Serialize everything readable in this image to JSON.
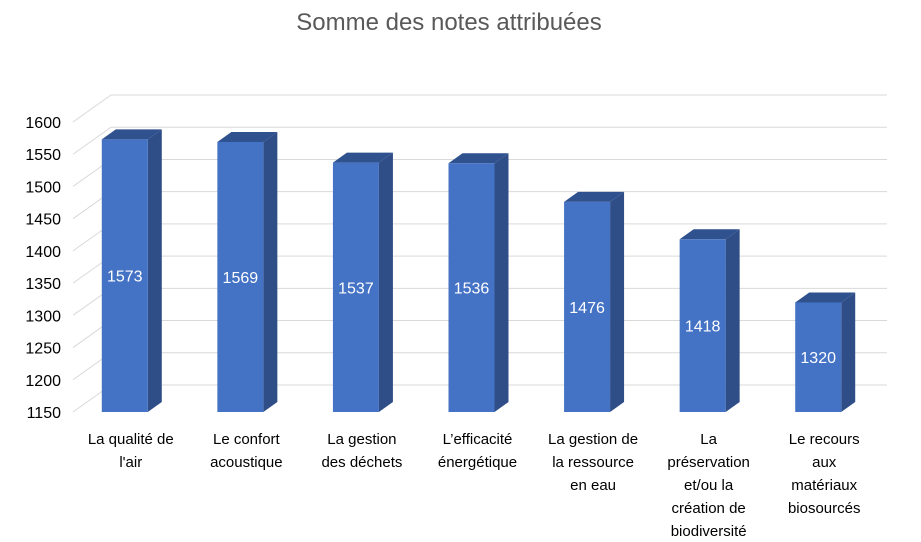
{
  "chart_data": {
    "type": "bar",
    "title": "Somme des notes attribuées",
    "xlabel": "",
    "ylabel": "",
    "ylim": [
      1150,
      1600
    ],
    "yticks": [
      1150,
      1200,
      1250,
      1300,
      1350,
      1400,
      1450,
      1500,
      1550,
      1600
    ],
    "grid": true,
    "legend": "none",
    "bar_style": "3d-column",
    "colors": {
      "bar_front": "#4472C4",
      "bar_side": "#2F4E88",
      "bar_top": "#2F528F",
      "gridline": "#D9D9D9",
      "title": "#595959"
    },
    "categories": [
      [
        "La qualité de",
        "l'air"
      ],
      [
        "Le confort",
        "acoustique"
      ],
      [
        "La gestion",
        "des déchets"
      ],
      [
        "L’efficacité",
        "énergétique"
      ],
      [
        "La gestion de",
        "la ressource",
        "en eau"
      ],
      [
        "La",
        "préservation",
        "et/ou la",
        "création de",
        "biodiversité"
      ],
      [
        "Le recours",
        "aux",
        "matériaux",
        "biosourcés"
      ]
    ],
    "values": [
      1573,
      1569,
      1537,
      1536,
      1476,
      1418,
      1320
    ]
  }
}
